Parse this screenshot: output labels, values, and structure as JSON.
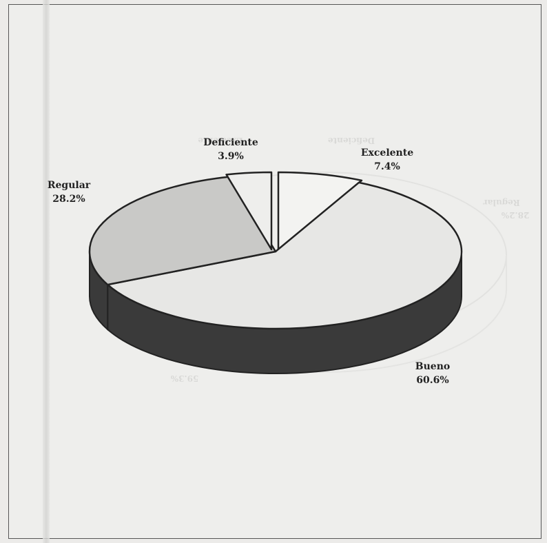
{
  "chart_data": {
    "type": "pie",
    "style": "3d-exploded",
    "slices": [
      {
        "label": "Excelente",
        "value": 7.4,
        "value_label": "7.4%",
        "color": "#f3f3f1"
      },
      {
        "label": "Bueno",
        "value": 60.6,
        "value_label": "60.6%",
        "color": "#e7e7e5"
      },
      {
        "label": "Regular",
        "value": 28.2,
        "value_label": "28.2%",
        "color": "#c9c9c7"
      },
      {
        "label": "Deficiente",
        "value": 3.9,
        "value_label": "3.9%",
        "color": "#eeeeec"
      }
    ],
    "side_color": "#3a3a3a",
    "outline_color": "#222222"
  },
  "ghost_show_through": {
    "labels": [
      "Excelente",
      "Deficiente",
      "Regular",
      "28.2%",
      "59.3%"
    ]
  }
}
